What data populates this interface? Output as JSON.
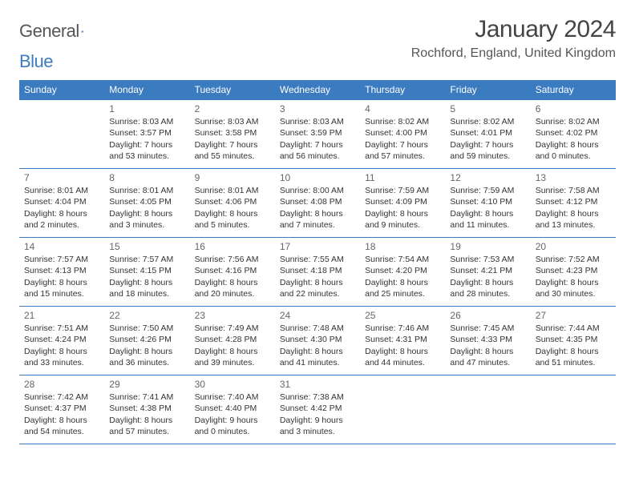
{
  "logo": {
    "general": "General",
    "blue": "Blue"
  },
  "title": "January 2024",
  "location": "Rochford, England, United Kingdom",
  "colors": {
    "accent": "#3b7bbf",
    "text": "#333333",
    "bg": "#ffffff"
  },
  "dayHeaders": [
    "Sunday",
    "Monday",
    "Tuesday",
    "Wednesday",
    "Thursday",
    "Friday",
    "Saturday"
  ],
  "weeks": [
    [
      null,
      {
        "n": "1",
        "sr": "Sunrise: 8:03 AM",
        "ss": "Sunset: 3:57 PM",
        "dl1": "Daylight: 7 hours",
        "dl2": "and 53 minutes."
      },
      {
        "n": "2",
        "sr": "Sunrise: 8:03 AM",
        "ss": "Sunset: 3:58 PM",
        "dl1": "Daylight: 7 hours",
        "dl2": "and 55 minutes."
      },
      {
        "n": "3",
        "sr": "Sunrise: 8:03 AM",
        "ss": "Sunset: 3:59 PM",
        "dl1": "Daylight: 7 hours",
        "dl2": "and 56 minutes."
      },
      {
        "n": "4",
        "sr": "Sunrise: 8:02 AM",
        "ss": "Sunset: 4:00 PM",
        "dl1": "Daylight: 7 hours",
        "dl2": "and 57 minutes."
      },
      {
        "n": "5",
        "sr": "Sunrise: 8:02 AM",
        "ss": "Sunset: 4:01 PM",
        "dl1": "Daylight: 7 hours",
        "dl2": "and 59 minutes."
      },
      {
        "n": "6",
        "sr": "Sunrise: 8:02 AM",
        "ss": "Sunset: 4:02 PM",
        "dl1": "Daylight: 8 hours",
        "dl2": "and 0 minutes."
      }
    ],
    [
      {
        "n": "7",
        "sr": "Sunrise: 8:01 AM",
        "ss": "Sunset: 4:04 PM",
        "dl1": "Daylight: 8 hours",
        "dl2": "and 2 minutes."
      },
      {
        "n": "8",
        "sr": "Sunrise: 8:01 AM",
        "ss": "Sunset: 4:05 PM",
        "dl1": "Daylight: 8 hours",
        "dl2": "and 3 minutes."
      },
      {
        "n": "9",
        "sr": "Sunrise: 8:01 AM",
        "ss": "Sunset: 4:06 PM",
        "dl1": "Daylight: 8 hours",
        "dl2": "and 5 minutes."
      },
      {
        "n": "10",
        "sr": "Sunrise: 8:00 AM",
        "ss": "Sunset: 4:08 PM",
        "dl1": "Daylight: 8 hours",
        "dl2": "and 7 minutes."
      },
      {
        "n": "11",
        "sr": "Sunrise: 7:59 AM",
        "ss": "Sunset: 4:09 PM",
        "dl1": "Daylight: 8 hours",
        "dl2": "and 9 minutes."
      },
      {
        "n": "12",
        "sr": "Sunrise: 7:59 AM",
        "ss": "Sunset: 4:10 PM",
        "dl1": "Daylight: 8 hours",
        "dl2": "and 11 minutes."
      },
      {
        "n": "13",
        "sr": "Sunrise: 7:58 AM",
        "ss": "Sunset: 4:12 PM",
        "dl1": "Daylight: 8 hours",
        "dl2": "and 13 minutes."
      }
    ],
    [
      {
        "n": "14",
        "sr": "Sunrise: 7:57 AM",
        "ss": "Sunset: 4:13 PM",
        "dl1": "Daylight: 8 hours",
        "dl2": "and 15 minutes."
      },
      {
        "n": "15",
        "sr": "Sunrise: 7:57 AM",
        "ss": "Sunset: 4:15 PM",
        "dl1": "Daylight: 8 hours",
        "dl2": "and 18 minutes."
      },
      {
        "n": "16",
        "sr": "Sunrise: 7:56 AM",
        "ss": "Sunset: 4:16 PM",
        "dl1": "Daylight: 8 hours",
        "dl2": "and 20 minutes."
      },
      {
        "n": "17",
        "sr": "Sunrise: 7:55 AM",
        "ss": "Sunset: 4:18 PM",
        "dl1": "Daylight: 8 hours",
        "dl2": "and 22 minutes."
      },
      {
        "n": "18",
        "sr": "Sunrise: 7:54 AM",
        "ss": "Sunset: 4:20 PM",
        "dl1": "Daylight: 8 hours",
        "dl2": "and 25 minutes."
      },
      {
        "n": "19",
        "sr": "Sunrise: 7:53 AM",
        "ss": "Sunset: 4:21 PM",
        "dl1": "Daylight: 8 hours",
        "dl2": "and 28 minutes."
      },
      {
        "n": "20",
        "sr": "Sunrise: 7:52 AM",
        "ss": "Sunset: 4:23 PM",
        "dl1": "Daylight: 8 hours",
        "dl2": "and 30 minutes."
      }
    ],
    [
      {
        "n": "21",
        "sr": "Sunrise: 7:51 AM",
        "ss": "Sunset: 4:24 PM",
        "dl1": "Daylight: 8 hours",
        "dl2": "and 33 minutes."
      },
      {
        "n": "22",
        "sr": "Sunrise: 7:50 AM",
        "ss": "Sunset: 4:26 PM",
        "dl1": "Daylight: 8 hours",
        "dl2": "and 36 minutes."
      },
      {
        "n": "23",
        "sr": "Sunrise: 7:49 AM",
        "ss": "Sunset: 4:28 PM",
        "dl1": "Daylight: 8 hours",
        "dl2": "and 39 minutes."
      },
      {
        "n": "24",
        "sr": "Sunrise: 7:48 AM",
        "ss": "Sunset: 4:30 PM",
        "dl1": "Daylight: 8 hours",
        "dl2": "and 41 minutes."
      },
      {
        "n": "25",
        "sr": "Sunrise: 7:46 AM",
        "ss": "Sunset: 4:31 PM",
        "dl1": "Daylight: 8 hours",
        "dl2": "and 44 minutes."
      },
      {
        "n": "26",
        "sr": "Sunrise: 7:45 AM",
        "ss": "Sunset: 4:33 PM",
        "dl1": "Daylight: 8 hours",
        "dl2": "and 47 minutes."
      },
      {
        "n": "27",
        "sr": "Sunrise: 7:44 AM",
        "ss": "Sunset: 4:35 PM",
        "dl1": "Daylight: 8 hours",
        "dl2": "and 51 minutes."
      }
    ],
    [
      {
        "n": "28",
        "sr": "Sunrise: 7:42 AM",
        "ss": "Sunset: 4:37 PM",
        "dl1": "Daylight: 8 hours",
        "dl2": "and 54 minutes."
      },
      {
        "n": "29",
        "sr": "Sunrise: 7:41 AM",
        "ss": "Sunset: 4:38 PM",
        "dl1": "Daylight: 8 hours",
        "dl2": "and 57 minutes."
      },
      {
        "n": "30",
        "sr": "Sunrise: 7:40 AM",
        "ss": "Sunset: 4:40 PM",
        "dl1": "Daylight: 9 hours",
        "dl2": "and 0 minutes."
      },
      {
        "n": "31",
        "sr": "Sunrise: 7:38 AM",
        "ss": "Sunset: 4:42 PM",
        "dl1": "Daylight: 9 hours",
        "dl2": "and 3 minutes."
      },
      null,
      null,
      null
    ]
  ]
}
